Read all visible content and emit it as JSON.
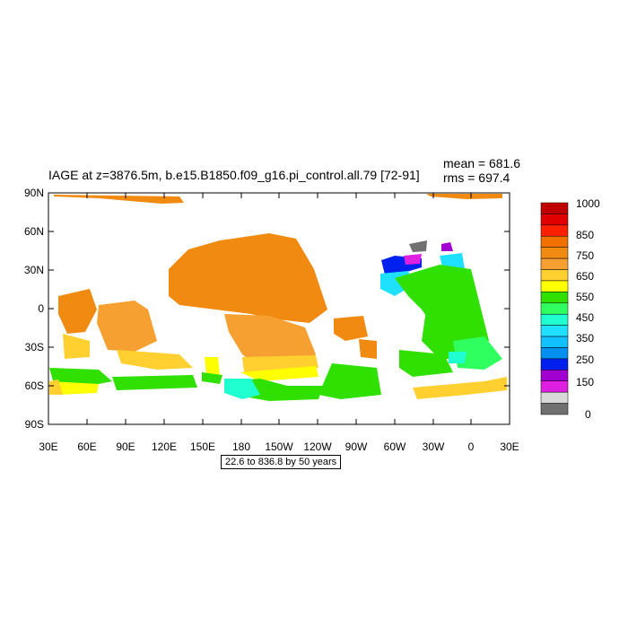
{
  "header": {
    "title": "IAGE at z=3876.5m, b.e15.B1850.f09_g16.pi_control.all.79 [72-91]",
    "mean": "mean = 681.6",
    "rms": "rms = 697.4"
  },
  "map": {
    "lat_ticks": [
      "90N",
      "60N",
      "30N",
      "0",
      "30S",
      "60S",
      "90S"
    ],
    "lon_ticks": [
      "30E",
      "60E",
      "90E",
      "120E",
      "150E",
      "180",
      "150W",
      "120W",
      "90W",
      "60W",
      "30W",
      "0",
      "30E"
    ]
  },
  "colorbar": {
    "labels": [
      "1000",
      "850",
      "750",
      "650",
      "550",
      "450",
      "350",
      "250",
      "150",
      "0"
    ],
    "colors": [
      "#c00000",
      "#e00000",
      "#ff2000",
      "#f07000",
      "#f08a10",
      "#f5a030",
      "#ffd030",
      "#ffff00",
      "#30e000",
      "#30ff60",
      "#20ffd0",
      "#20e0ff",
      "#10c0ff",
      "#0090f0",
      "#0020f0",
      "#a000d0",
      "#e020e0",
      "#d8d8d8",
      "#707070"
    ]
  },
  "footer": {
    "range": "22.6 to 836.8 by 50 years"
  }
}
